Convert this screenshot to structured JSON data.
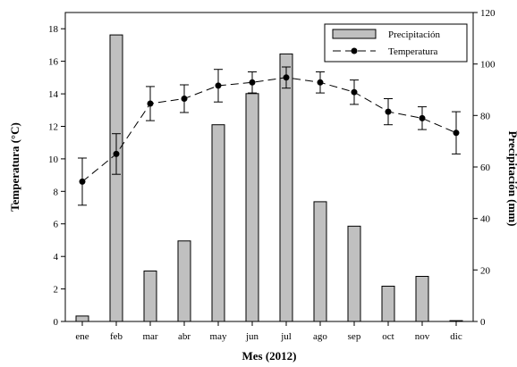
{
  "chart_data": {
    "type": "bar+line",
    "categories": [
      "ene",
      "feb",
      "mar",
      "abr",
      "may",
      "jun",
      "jul",
      "ago",
      "sep",
      "oct",
      "nov",
      "dic"
    ],
    "xlabel": "Mes (2012)",
    "ylabel_left": "Temperatura (°C)",
    "ylabel_right": "Precipitación (mm)",
    "ylim_left": [
      0,
      19
    ],
    "yticks_left": [
      0,
      2,
      4,
      6,
      8,
      10,
      12,
      14,
      16,
      18
    ],
    "ylim_right": [
      0,
      120
    ],
    "yticks_right": [
      0,
      20,
      40,
      60,
      80,
      100,
      120
    ],
    "grid": false,
    "legend_position": "top-right",
    "series": [
      {
        "name": "Precipitación",
        "type": "bar",
        "axis": "right",
        "color": "#c0c0c0",
        "values": [
          2.1,
          111.3,
          19.6,
          31.3,
          76.4,
          88.5,
          103.9,
          46.5,
          37.0,
          13.7,
          17.5,
          0.3
        ]
      },
      {
        "name": "Temperatura",
        "type": "line",
        "axis": "left",
        "color": "#000000",
        "values": [
          8.6,
          10.3,
          13.4,
          13.7,
          14.5,
          14.7,
          15.0,
          14.7,
          14.1,
          12.9,
          12.5,
          11.6
        ],
        "error": [
          1.45,
          1.25,
          1.05,
          0.85,
          1.0,
          0.65,
          0.65,
          0.65,
          0.75,
          0.8,
          0.7,
          1.3
        ]
      }
    ]
  }
}
